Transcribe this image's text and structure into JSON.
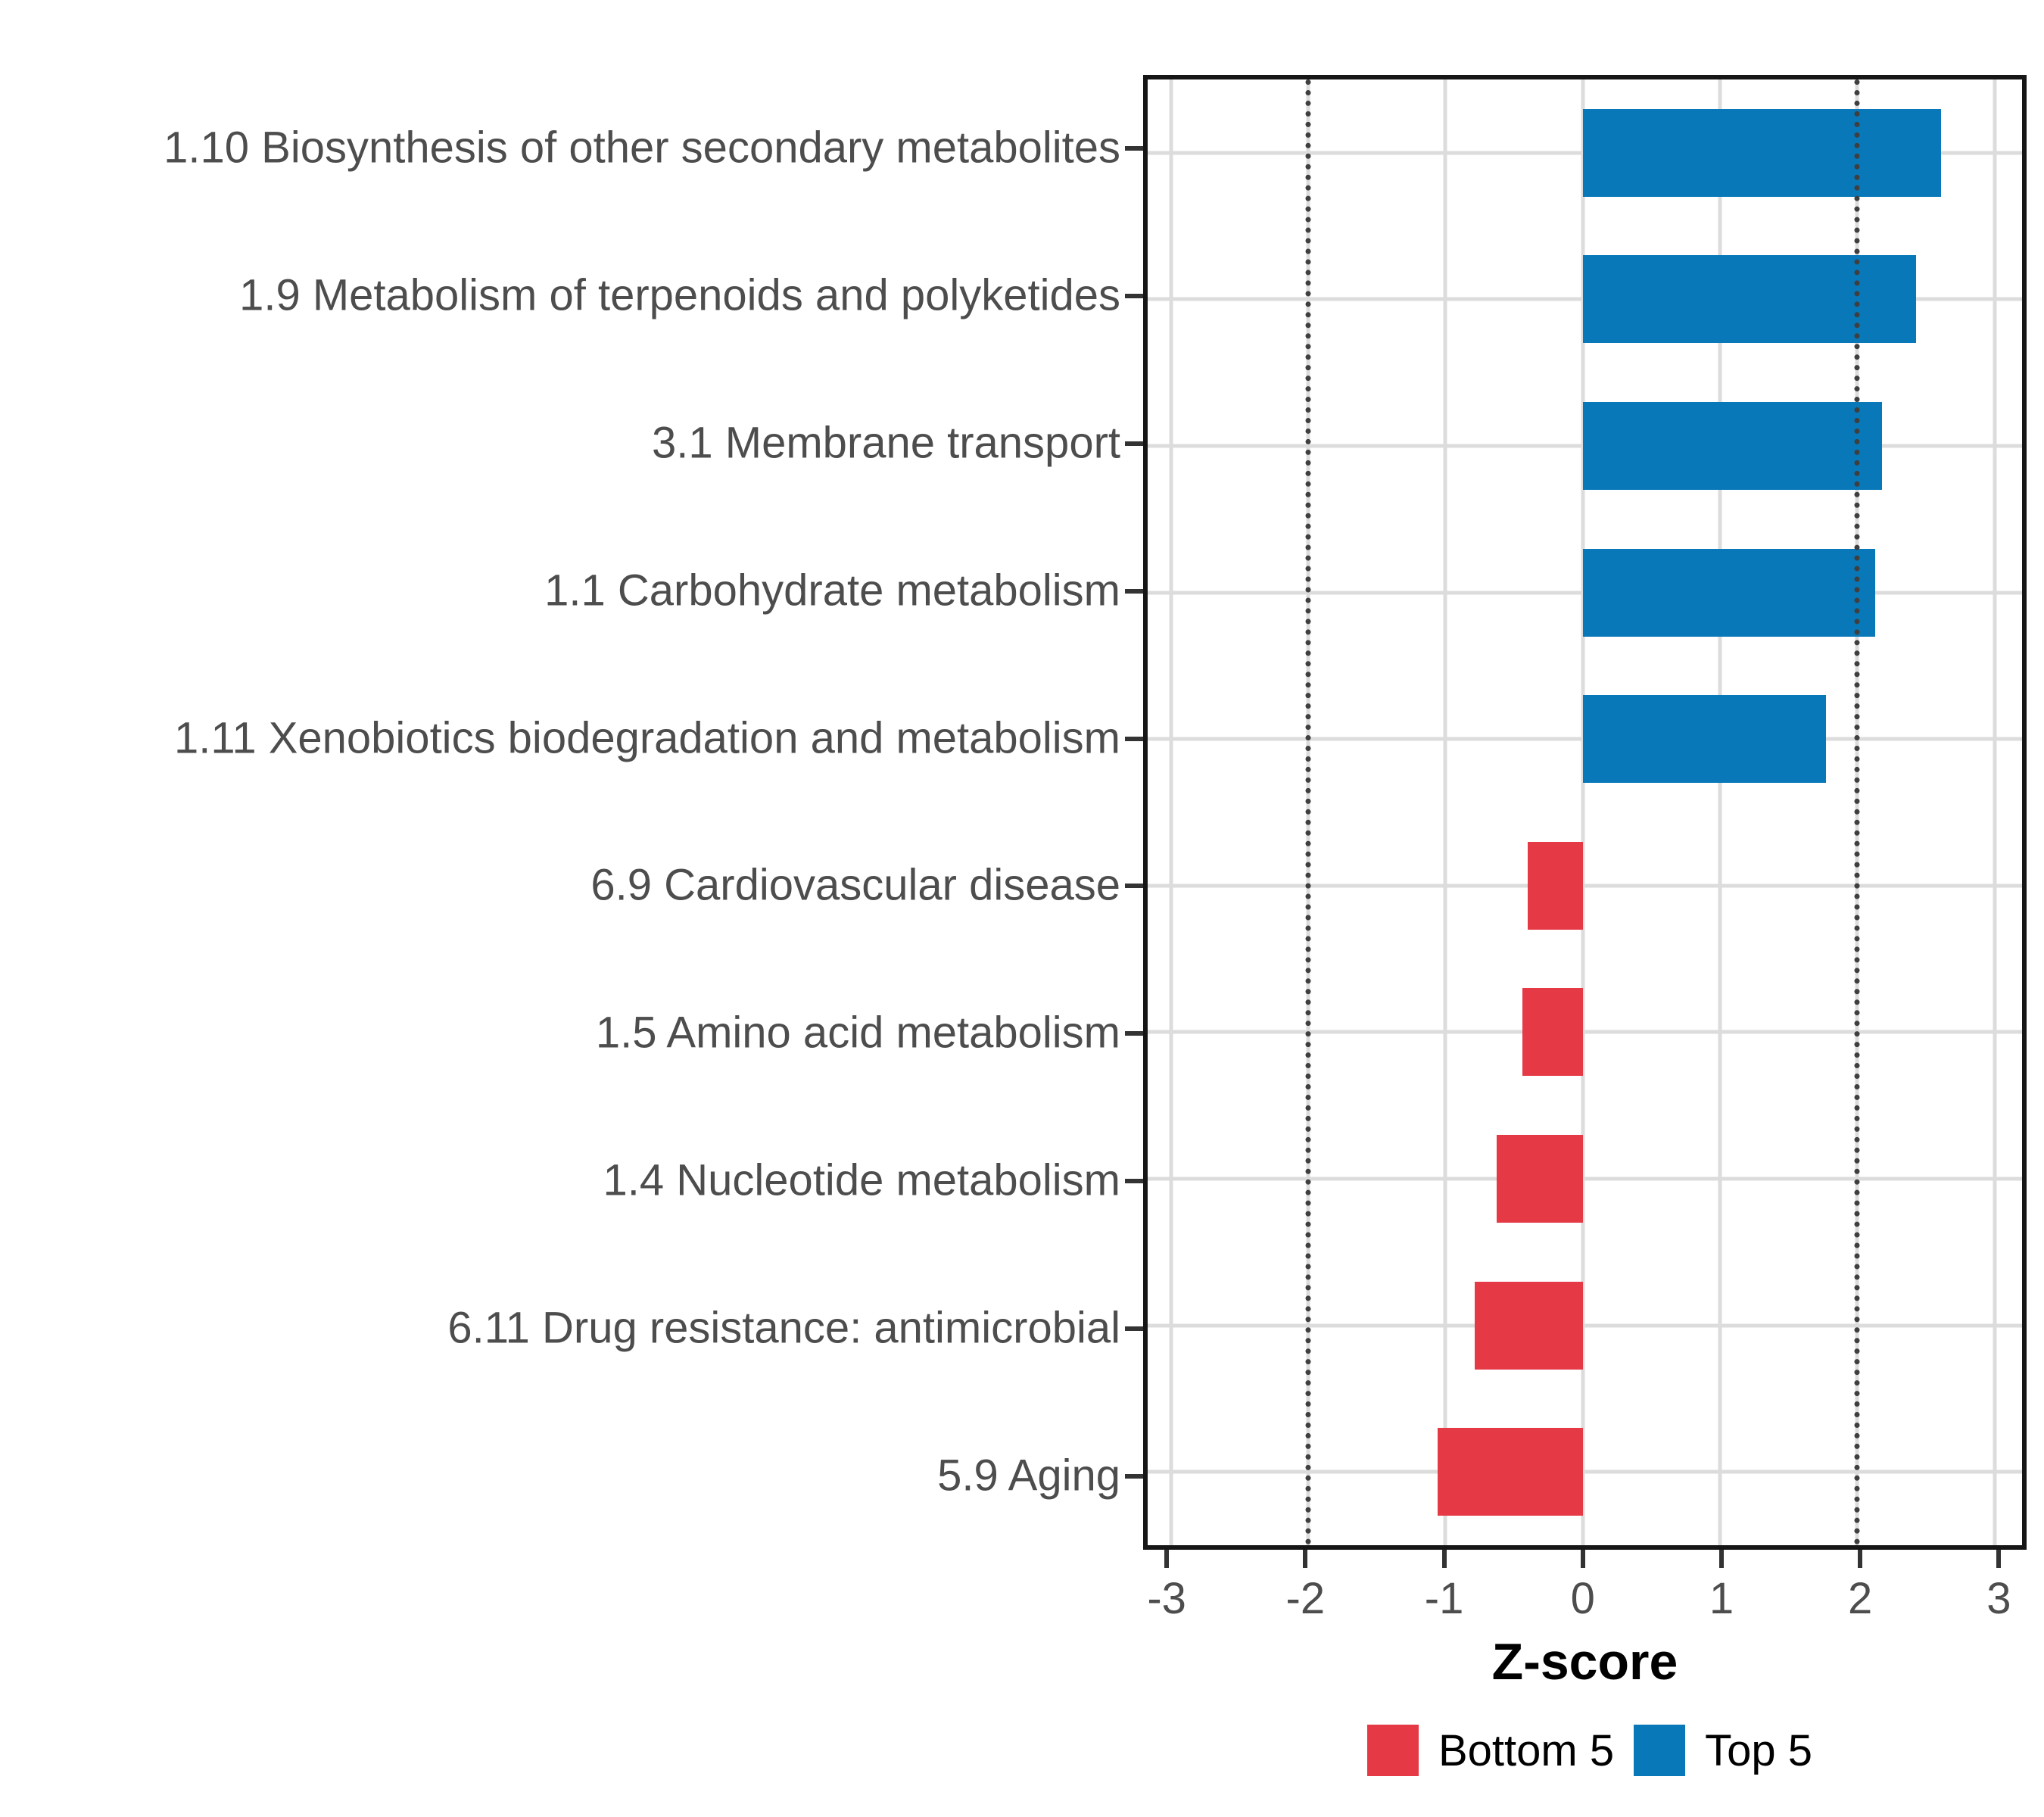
{
  "chart_data": {
    "type": "bar",
    "orientation": "horizontal",
    "title": "",
    "xlabel": "Z-score",
    "ylabel": "",
    "xlim": [
      -3.17,
      3.2
    ],
    "x_ticks": [
      -3,
      -2,
      -1,
      0,
      1,
      2,
      3
    ],
    "x_tick_labels": [
      "-3",
      "-2",
      "-1",
      "0",
      "1",
      "2",
      "3"
    ],
    "reference_lines": [
      -2,
      2
    ],
    "grid": "major-only",
    "legend_position": "bottom",
    "categories": [
      "1.10 Biosynthesis of other secondary metabolites",
      "1.9 Metabolism of terpenoids and polyketides",
      "3.1 Membrane transport",
      "1.1 Carbohydrate metabolism",
      "1.11 Xenobiotics biodegradation and metabolism",
      "6.9 Cardiovascular disease",
      "1.5 Amino acid metabolism",
      "1.4 Nucleotide metabolism",
      "6.11 Drug resistance: antimicrobial",
      "5.9 Aging"
    ],
    "series": [
      {
        "name": "Z-score",
        "values": [
          2.61,
          2.43,
          2.18,
          2.13,
          1.77,
          -0.4,
          -0.44,
          -0.63,
          -0.79,
          -1.06
        ],
        "groups": [
          "Top 5",
          "Top 5",
          "Top 5",
          "Top 5",
          "Top 5",
          "Bottom 5",
          "Bottom 5",
          "Bottom 5",
          "Bottom 5",
          "Bottom 5"
        ]
      }
    ],
    "legend": [
      {
        "label": "Bottom 5",
        "color": "#e63946"
      },
      {
        "label": "Top 5",
        "color": "#0878b8"
      }
    ],
    "colors": {
      "Top 5": "#0878b8",
      "Bottom 5": "#e63946",
      "grid": "#dcdcdc",
      "panel_border": "#161616",
      "axis_text": "#4d4d4d",
      "reference_line": "#3f3f3f"
    }
  }
}
